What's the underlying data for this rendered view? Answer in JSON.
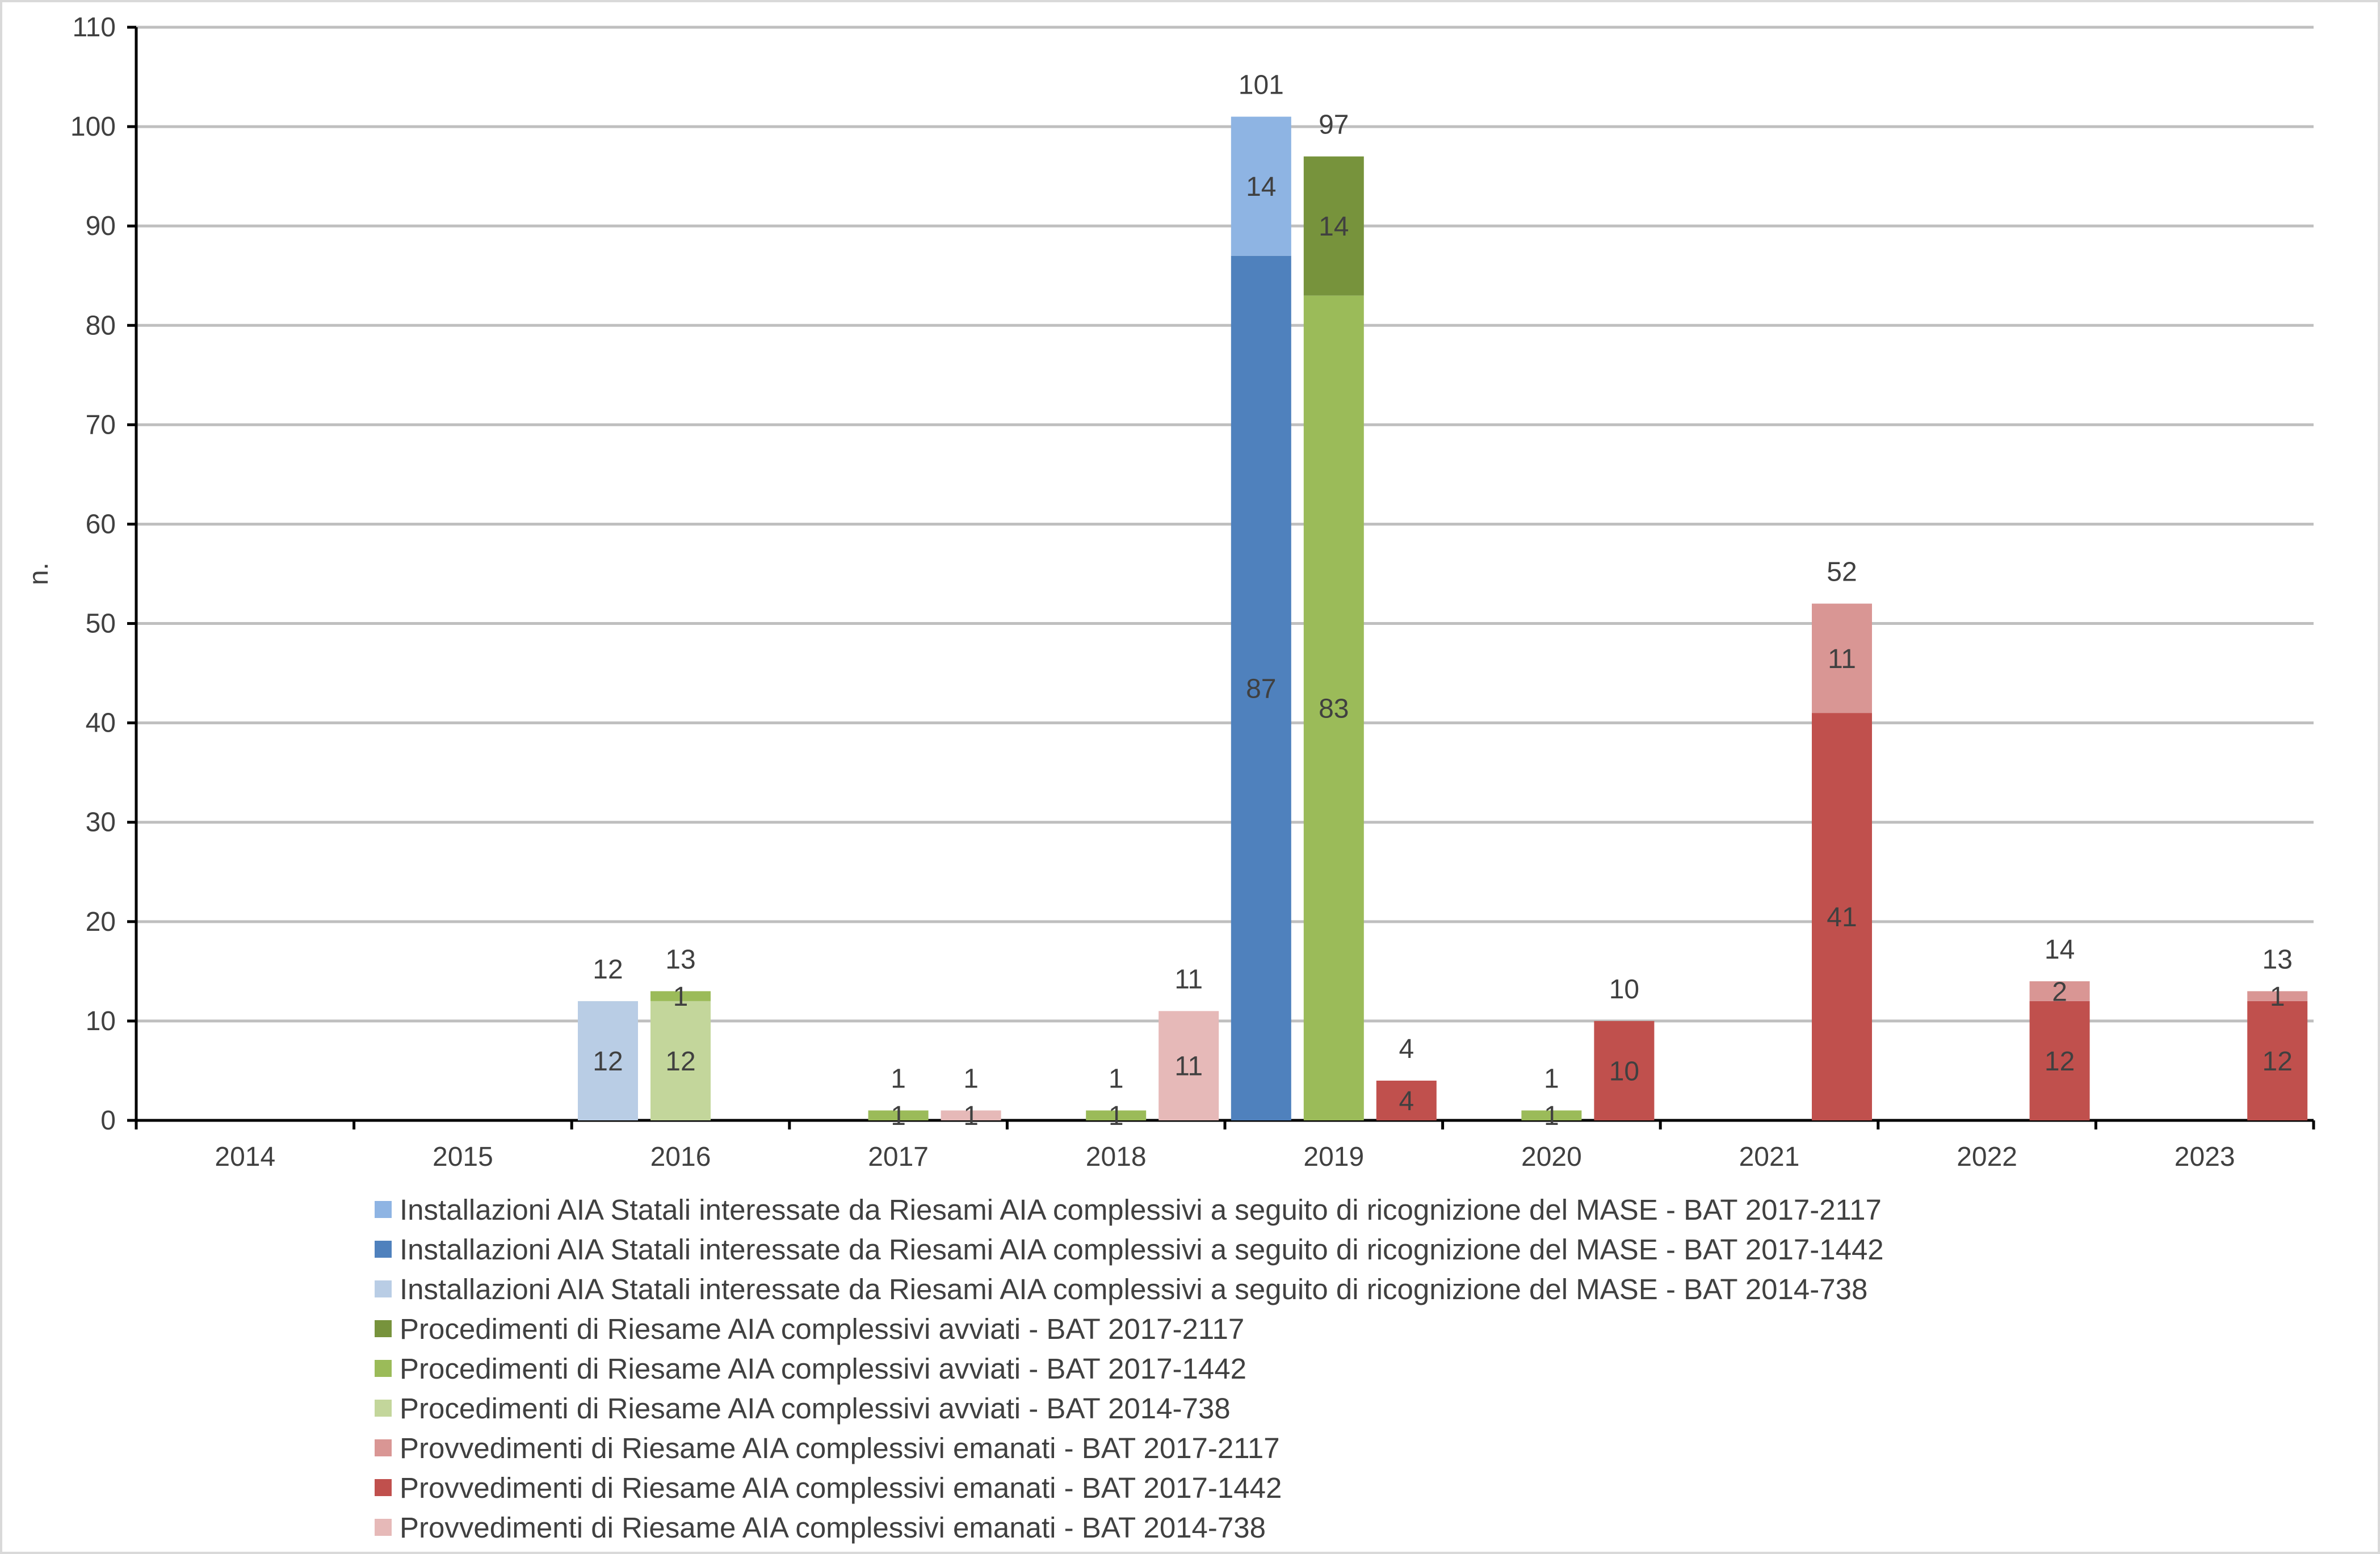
{
  "chart_data": {
    "type": "bar",
    "stacked": true,
    "xlabel": "",
    "ylabel": "n.",
    "ylim": [
      0,
      110
    ],
    "yticks": [
      0,
      10,
      20,
      30,
      40,
      50,
      60,
      70,
      80,
      90,
      100,
      110
    ],
    "grid": true,
    "legend_position": "bottom",
    "categories": [
      "2014",
      "2015",
      "2016",
      "2017",
      "2018",
      "2019",
      "2020",
      "2021",
      "2022",
      "2023"
    ],
    "groups": [
      {
        "name": "Installazioni AIA Statali",
        "values_by_year": {
          "2016": {
            "BAT 2014-738": 12,
            "BAT 2017-1442": 0,
            "BAT 2017-2117": 0,
            "total": 12
          },
          "2019": {
            "BAT 2014-738": 0,
            "BAT 2017-1442": 87,
            "BAT 2017-2117": 14,
            "total": 101
          }
        }
      },
      {
        "name": "Procedimenti di Riesame",
        "values_by_year": {
          "2016": {
            "BAT 2014-738": 12,
            "BAT 2017-1442": 1,
            "BAT 2017-2117": 0,
            "total": 13
          },
          "2017": {
            "BAT 2014-738": 0,
            "BAT 2017-1442": 1,
            "BAT 2017-2117": 0,
            "total": 1
          },
          "2018": {
            "BAT 2014-738": 0,
            "BAT 2017-1442": 1,
            "BAT 2017-2117": 0,
            "total": 1
          },
          "2019": {
            "BAT 2014-738": 0,
            "BAT 2017-1442": 83,
            "BAT 2017-2117": 14,
            "total": 97
          },
          "2020": {
            "BAT 2014-738": 0,
            "BAT 2017-1442": 1,
            "BAT 2017-2117": 0,
            "total": 1
          }
        }
      },
      {
        "name": "Provvedimenti di Riesame",
        "values_by_year": {
          "2017": {
            "BAT 2014-738": 1,
            "BAT 2017-1442": 0,
            "BAT 2017-2117": 0,
            "total": 1
          },
          "2018": {
            "BAT 2014-738": 11,
            "BAT 2017-1442": 0,
            "BAT 2017-2117": 0,
            "total": 11
          },
          "2019": {
            "BAT 2014-738": 0,
            "BAT 2017-1442": 4,
            "BAT 2017-2117": 0,
            "total": 4
          },
          "2020": {
            "BAT 2014-738": 0,
            "BAT 2017-1442": 10,
            "BAT 2017-2117": 0,
            "total": 10
          },
          "2021": {
            "BAT 2014-738": 0,
            "BAT 2017-1442": 41,
            "BAT 2017-2117": 11,
            "total": 52
          },
          "2022": {
            "BAT 2014-738": 0,
            "BAT 2017-1442": 12,
            "BAT 2017-2117": 2,
            "total": 14
          },
          "2023": {
            "BAT 2014-738": 0,
            "BAT 2017-1442": 12,
            "BAT 2017-2117": 1,
            "total": 13
          }
        }
      }
    ],
    "series": [
      {
        "name": "Installazioni AIA Statali interessate da Riesami AIA complessivi a seguito di ricognizione del MASE - BAT 2017-2117",
        "color": "#8eb4e3",
        "group": 0,
        "key": "BAT 2017-2117"
      },
      {
        "name": "Installazioni AIA Statali interessate da Riesami AIA complessivi a seguito di ricognizione del MASE - BAT 2017-1442",
        "color": "#4f81bd",
        "group": 0,
        "key": "BAT 2017-1442"
      },
      {
        "name": "Installazioni AIA Statali interessate da Riesami AIA complessivi a seguito di ricognizione del MASE - BAT 2014-738",
        "color": "#b9cde5",
        "group": 0,
        "key": "BAT 2014-738"
      },
      {
        "name": "Procedimenti di Riesame AIA complessivi avviati - BAT 2017-2117",
        "color": "#77933c",
        "group": 1,
        "key": "BAT 2017-2117"
      },
      {
        "name": "Procedimenti di Riesame AIA complessivi avviati - BAT 2017-1442",
        "color": "#9bbb59",
        "group": 1,
        "key": "BAT 2017-1442"
      },
      {
        "name": "Procedimenti di Riesame AIA complessivi avviati - BAT 2014-738",
        "color": "#c3d69b",
        "group": 1,
        "key": "BAT 2014-738"
      },
      {
        "name": "Provvedimenti di Riesame AIA complessivi emanati - BAT 2017-2117",
        "color": "#d99694",
        "group": 2,
        "key": "BAT 2017-2117"
      },
      {
        "name": "Provvedimenti di Riesame AIA complessivi emanati - BAT 2017-1442",
        "color": "#c0504d",
        "group": 2,
        "key": "BAT 2017-1442"
      },
      {
        "name": "Provvedimenti di Riesame AIA complessivi emanati - BAT 2014-738",
        "color": "#e6b9b8",
        "group": 2,
        "key": "BAT 2014-738"
      }
    ]
  }
}
